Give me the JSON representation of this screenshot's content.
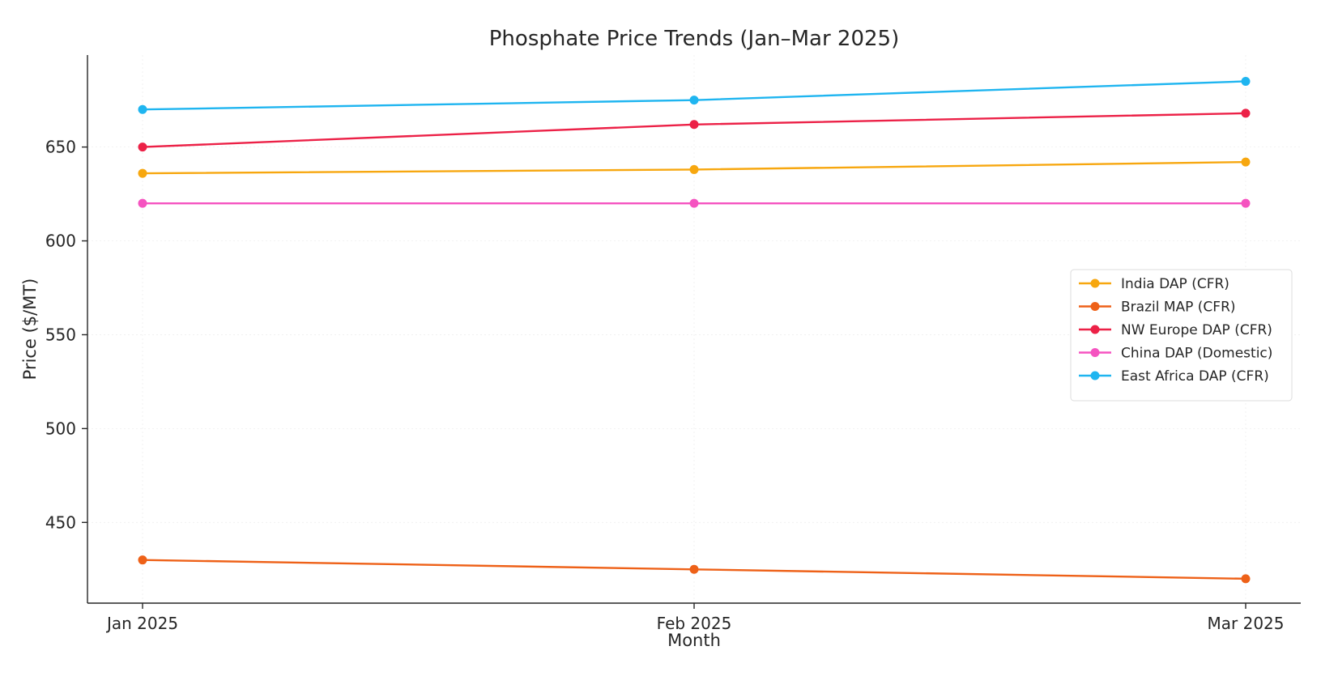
{
  "chart_data": {
    "type": "line",
    "title": "Phosphate Price Trends (Jan–Mar 2025)",
    "xlabel": "Month",
    "ylabel": "Price ($/MT)",
    "categories": [
      "Jan 2025",
      "Feb 2025",
      "Mar 2025"
    ],
    "ylim": [
      407,
      699
    ],
    "yticks": [
      450,
      500,
      550,
      600,
      650
    ],
    "grid": "faint dotted vertical and horizontal",
    "legend_position": "center-right",
    "markers": "circle",
    "series": [
      {
        "name": "India DAP (CFR)",
        "color": "#f7a70f",
        "values": [
          636,
          638,
          642
        ]
      },
      {
        "name": "Brazil MAP (CFR)",
        "color": "#ee6118",
        "values": [
          430,
          425,
          420
        ]
      },
      {
        "name": "NW Europe DAP (CFR)",
        "color": "#ec2147",
        "values": [
          650,
          662,
          668
        ]
      },
      {
        "name": "China DAP (Domestic)",
        "color": "#f553c0",
        "values": [
          620,
          620,
          620
        ]
      },
      {
        "name": "East Africa DAP (CFR)",
        "color": "#1fb5f0",
        "values": [
          670,
          675,
          685
        ]
      }
    ]
  }
}
